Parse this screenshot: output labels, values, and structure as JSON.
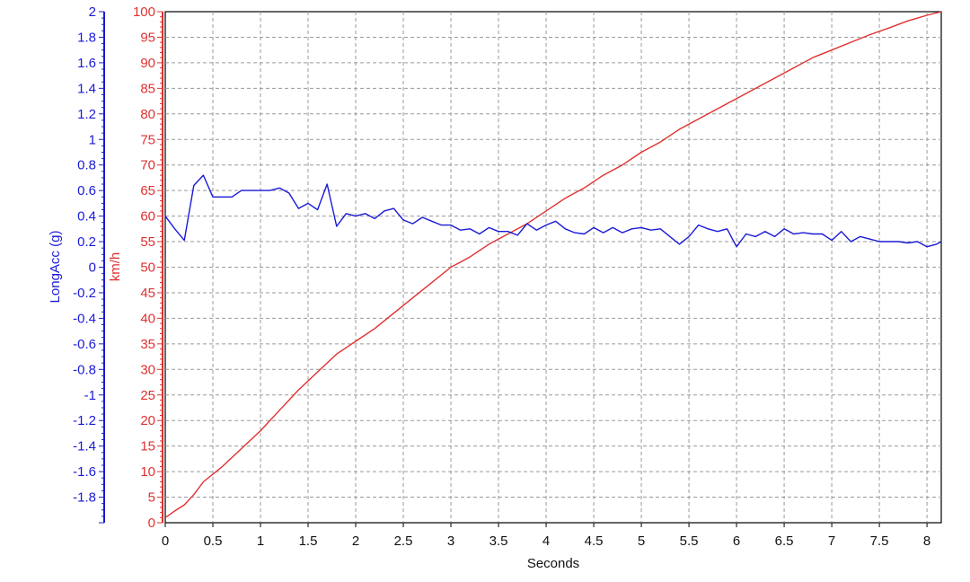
{
  "chart_data": {
    "type": "line",
    "xlabel": "Seconds",
    "y1label": "LongAcc (g)",
    "y2label": "km/h",
    "x_ticks": [
      "0",
      "0.5",
      "1",
      "1.5",
      "2",
      "2.5",
      "3",
      "3.5",
      "4",
      "4.5",
      "5",
      "5.5",
      "6",
      "6.5",
      "7",
      "7.5",
      "8"
    ],
    "y1_ticks": [
      "2",
      "1.8",
      "1.6",
      "1.4",
      "1.2",
      "1",
      "0.8",
      "0.6",
      "0.4",
      "0.2",
      "0",
      "-0.2",
      "-0.4",
      "-0.6",
      "-0.8",
      "-1",
      "-1.2",
      "-1.4",
      "-1.6",
      "-1.8"
    ],
    "y2_ticks": [
      "100",
      "95",
      "90",
      "85",
      "80",
      "75",
      "70",
      "65",
      "60",
      "55",
      "50",
      "45",
      "40",
      "35",
      "30",
      "25",
      "20",
      "15",
      "10",
      "5",
      "0"
    ],
    "xlim": [
      0,
      8.15
    ],
    "y1lim": [
      -2,
      2
    ],
    "y2lim": [
      0,
      100
    ],
    "grid": true,
    "colors": {
      "speed": "#e03030",
      "accel": "#1a1ad6",
      "axis_blue": "#1a1ad6",
      "axis_red": "#e03030"
    },
    "series": [
      {
        "axis": "km/h",
        "color": "#e03030",
        "x": [
          0,
          0.1,
          0.2,
          0.3,
          0.4,
          0.6,
          0.8,
          1.0,
          1.2,
          1.4,
          1.6,
          1.8,
          2.0,
          2.2,
          2.4,
          2.6,
          2.8,
          3.0,
          3.2,
          3.4,
          3.6,
          3.8,
          4.0,
          4.2,
          4.4,
          4.6,
          4.8,
          5.0,
          5.2,
          5.4,
          5.6,
          5.8,
          6.0,
          6.2,
          6.4,
          6.6,
          6.8,
          7.0,
          7.2,
          7.4,
          7.6,
          7.8,
          8.0,
          8.15
        ],
        "values": [
          1,
          2.3,
          3.5,
          5.5,
          8,
          11,
          14.5,
          18,
          22,
          26,
          29.5,
          33,
          35.5,
          38,
          41,
          44,
          47,
          50,
          52,
          54.5,
          56.5,
          58.5,
          61,
          63.5,
          65.5,
          68,
          70,
          72.5,
          74.5,
          77,
          79,
          81,
          83,
          85,
          87,
          89,
          91,
          92.5,
          94,
          95.5,
          96.8,
          98.2,
          99.3,
          100
        ]
      },
      {
        "axis": "LongAcc (g)",
        "color": "#1a1ad6",
        "x": [
          0,
          0.1,
          0.2,
          0.3,
          0.4,
          0.5,
          0.7,
          0.8,
          1.0,
          1.1,
          1.2,
          1.3,
          1.4,
          1.5,
          1.6,
          1.7,
          1.8,
          1.9,
          2.0,
          2.1,
          2.2,
          2.3,
          2.4,
          2.5,
          2.6,
          2.7,
          2.8,
          2.9,
          3.0,
          3.1,
          3.2,
          3.3,
          3.4,
          3.5,
          3.6,
          3.7,
          3.8,
          3.9,
          4.0,
          4.1,
          4.2,
          4.3,
          4.4,
          4.5,
          4.6,
          4.7,
          4.8,
          4.9,
          5.0,
          5.1,
          5.2,
          5.3,
          5.4,
          5.5,
          5.6,
          5.7,
          5.8,
          5.9,
          6.0,
          6.1,
          6.2,
          6.3,
          6.4,
          6.5,
          6.6,
          6.7,
          6.8,
          6.9,
          7.0,
          7.1,
          7.2,
          7.3,
          7.4,
          7.5,
          7.6,
          7.7,
          7.8,
          7.9,
          8.0,
          8.1,
          8.15
        ],
        "values": [
          0.4,
          0.3,
          0.21,
          0.64,
          0.72,
          0.55,
          0.55,
          0.6,
          0.6,
          0.6,
          0.62,
          0.58,
          0.46,
          0.5,
          0.45,
          0.65,
          0.32,
          0.42,
          0.4,
          0.42,
          0.38,
          0.44,
          0.46,
          0.37,
          0.34,
          0.39,
          0.36,
          0.33,
          0.33,
          0.29,
          0.3,
          0.26,
          0.31,
          0.28,
          0.28,
          0.25,
          0.34,
          0.29,
          0.33,
          0.36,
          0.3,
          0.27,
          0.26,
          0.31,
          0.27,
          0.31,
          0.27,
          0.3,
          0.31,
          0.29,
          0.3,
          0.24,
          0.18,
          0.24,
          0.33,
          0.3,
          0.28,
          0.3,
          0.16,
          0.26,
          0.24,
          0.28,
          0.24,
          0.3,
          0.26,
          0.27,
          0.26,
          0.26,
          0.21,
          0.28,
          0.2,
          0.24,
          0.22,
          0.2,
          0.2,
          0.2,
          0.19,
          0.2,
          0.16,
          0.18,
          0.2
        ]
      }
    ]
  }
}
